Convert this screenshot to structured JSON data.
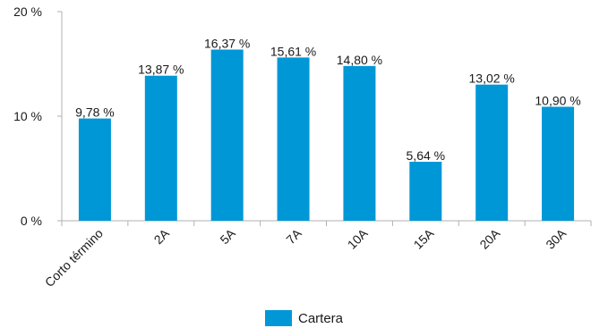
{
  "chart_data": {
    "type": "bar",
    "title": "",
    "xlabel": "",
    "ylabel": "",
    "categories": [
      "Corto término",
      "2A",
      "5A",
      "7A",
      "10A",
      "15A",
      "20A",
      "30A"
    ],
    "series": [
      {
        "name": "Cartera",
        "values": [
          9.78,
          13.87,
          16.37,
          15.61,
          14.8,
          5.64,
          13.02,
          10.9
        ],
        "labels": [
          "9,78 %",
          "13,87 %",
          "16,37 %",
          "15,61 %",
          "14,80 %",
          "5,64 %",
          "13,02 %",
          "10,90 %"
        ]
      }
    ],
    "ylim": [
      0,
      20
    ],
    "yticks": [
      0,
      10,
      20
    ],
    "ytick_labels": [
      "0 %",
      "10 %",
      "20 %"
    ],
    "grid": false,
    "legend_position": "bottom",
    "colors": {
      "bar": "#0097d7",
      "axis": "#b0b0b0",
      "text": "#1a1a1a"
    }
  },
  "legend": {
    "label": "Cartera"
  }
}
